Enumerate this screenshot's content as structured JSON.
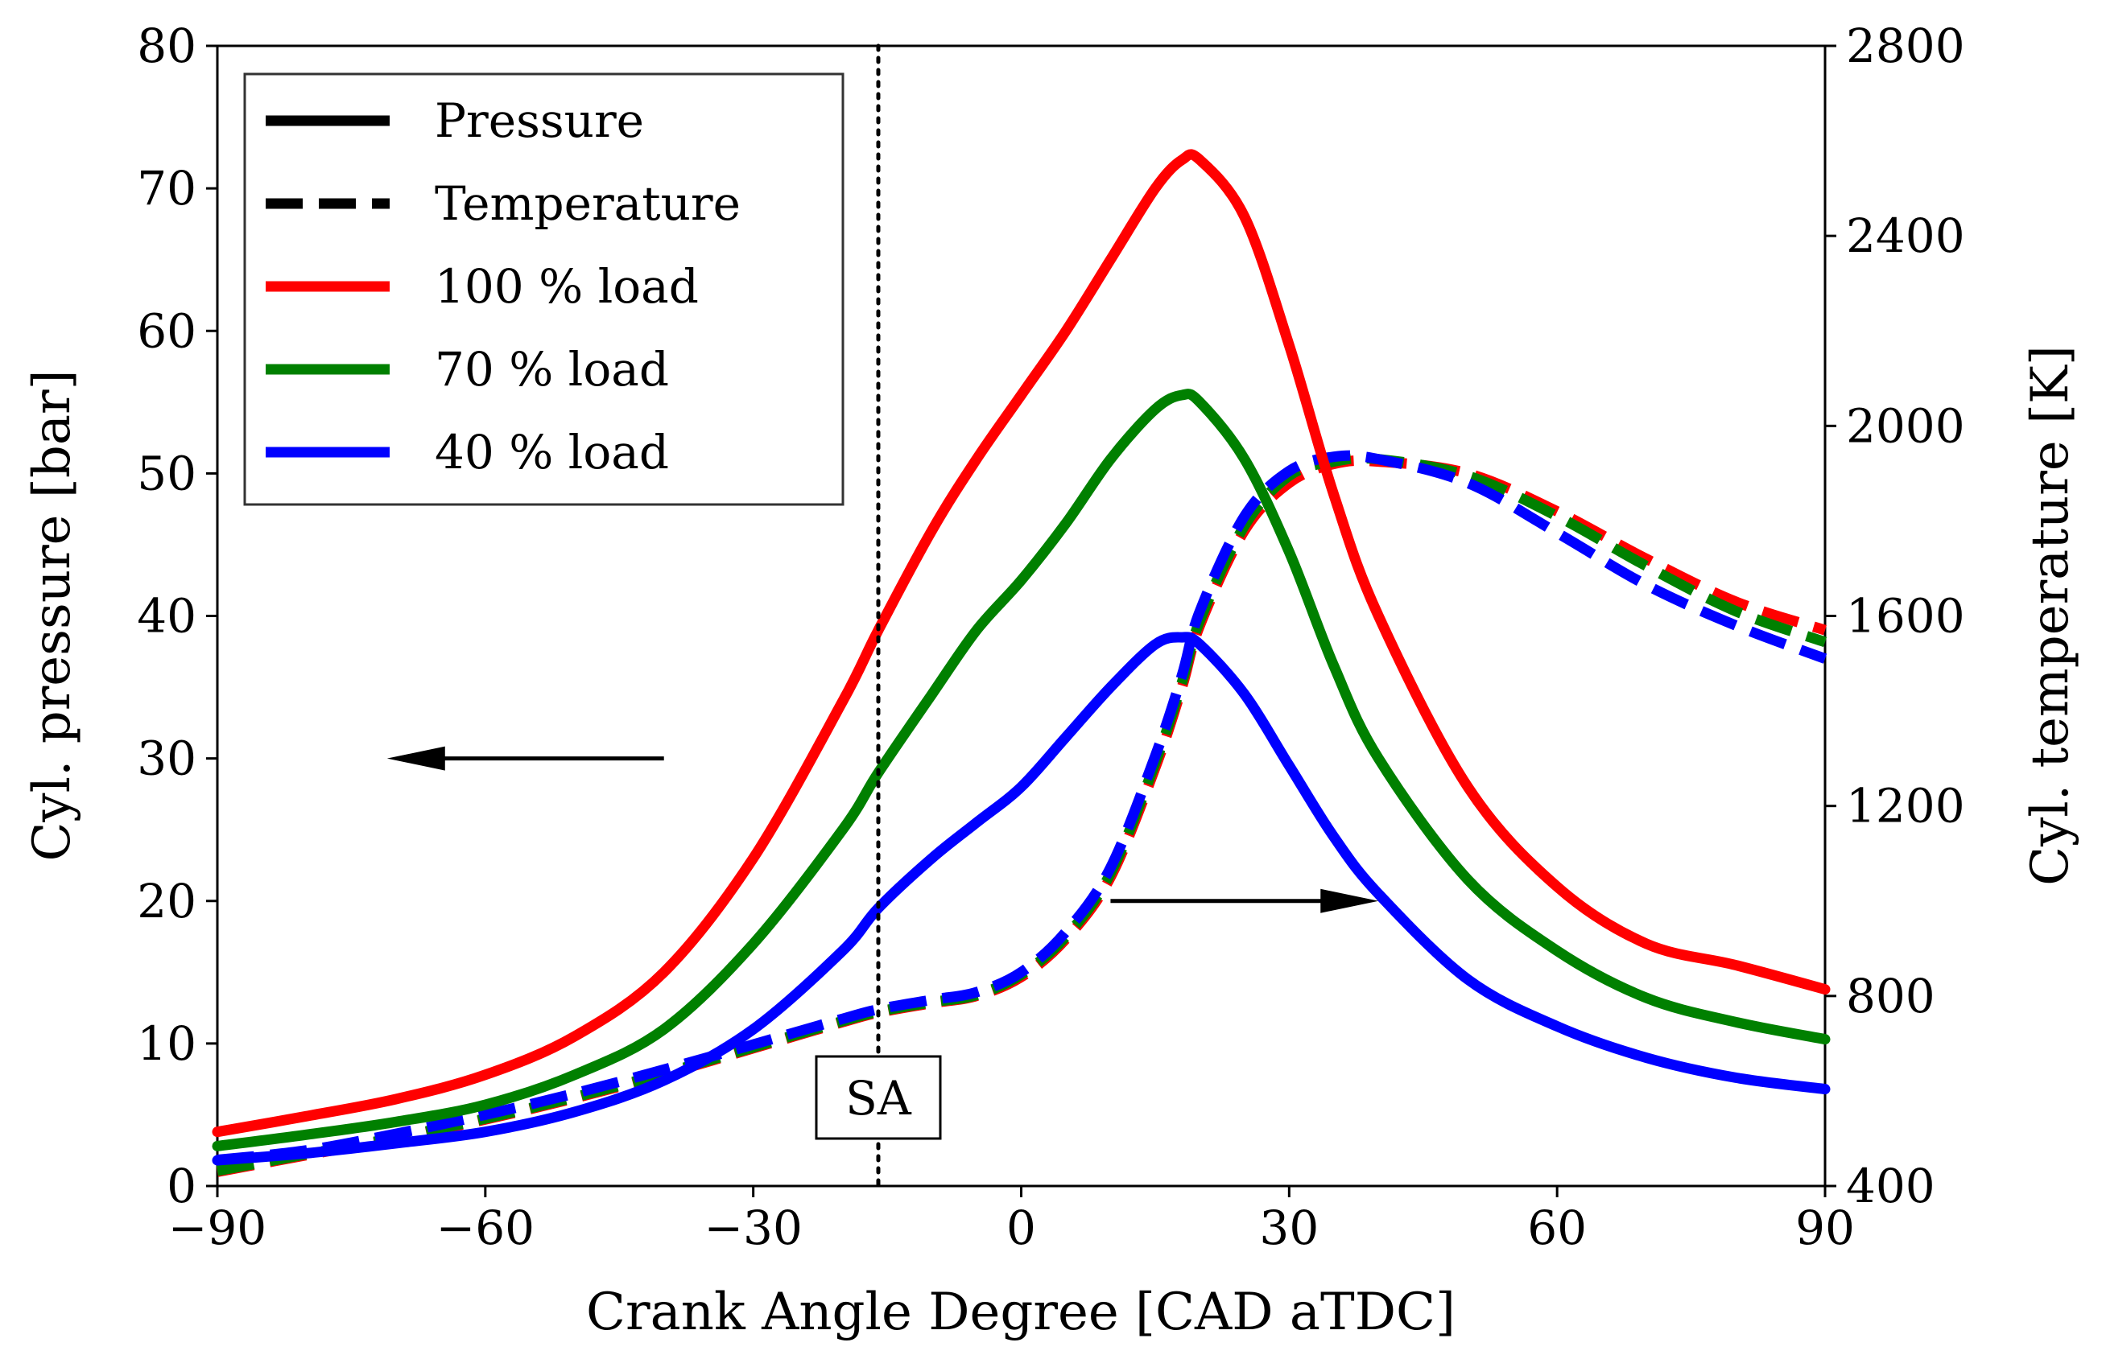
{
  "chart_data": {
    "type": "line",
    "xlabel": "Crank Angle Degree [CAD aTDC]",
    "ylabel_left": "Cyl. pressure [bar]",
    "ylabel_right": "Cyl. temperature [K]",
    "xlim": [
      -90,
      90
    ],
    "ylim_left": [
      0,
      80
    ],
    "ylim_right": [
      400,
      2800
    ],
    "x_ticks": [
      -90,
      -60,
      -30,
      0,
      30,
      60,
      90
    ],
    "x_tick_labels": [
      "−90",
      "−60",
      "−30",
      "0",
      "30",
      "60",
      "90"
    ],
    "y_left_ticks": [
      0,
      10,
      20,
      30,
      40,
      50,
      60,
      70,
      80
    ],
    "y_left_tick_labels": [
      "0",
      "10",
      "20",
      "30",
      "40",
      "50",
      "60",
      "70",
      "80"
    ],
    "y_right_ticks": [
      400,
      800,
      1200,
      1600,
      2000,
      2400,
      2800
    ],
    "y_right_tick_labels": [
      "400",
      "800",
      "1200",
      "1600",
      "2000",
      "2400",
      "2800"
    ],
    "grid": false,
    "legend_position": "top-left",
    "legend": [
      {
        "label": "Pressure",
        "color": "#000000",
        "style": "solid"
      },
      {
        "label": "Temperature",
        "color": "#000000",
        "style": "dashed"
      },
      {
        "label": "100 % load",
        "color": "#ff0000",
        "style": "solid"
      },
      {
        "label": "70 % load",
        "color": "#008000",
        "style": "solid"
      },
      {
        "label": "40 % load",
        "color": "#0000ff",
        "style": "solid"
      }
    ],
    "annotations": {
      "spark_advance_label": "SA",
      "spark_advance_x": -16,
      "left_arrow": {
        "x_from": -40,
        "x_to": -71,
        "y": 30,
        "axis": "left"
      },
      "right_arrow": {
        "x_from": 10,
        "x_to": 40,
        "y": 20,
        "axis": "left"
      }
    },
    "x": [
      -90,
      -80,
      -70,
      -60,
      -50,
      -40,
      -30,
      -20,
      -16,
      -10,
      -5,
      0,
      5,
      10,
      15,
      18,
      20,
      25,
      30,
      35,
      40,
      50,
      60,
      70,
      80,
      90
    ],
    "series": [
      {
        "name": "100 % load",
        "quantity": "pressure",
        "axis": "left",
        "color": "#ff0000",
        "values": [
          3.8,
          4.9,
          6.1,
          7.8,
          10.5,
          15.0,
          23.0,
          34.0,
          39.0,
          46.0,
          51.0,
          55.5,
          60.0,
          65.0,
          70.0,
          72.0,
          72.0,
          68.0,
          59.0,
          48.5,
          40.0,
          28.0,
          21.0,
          17.0,
          15.5,
          13.8
        ]
      },
      {
        "name": "70 % load",
        "quantity": "pressure",
        "axis": "left",
        "color": "#008000",
        "values": [
          2.8,
          3.6,
          4.5,
          5.7,
          7.8,
          11.0,
          17.0,
          25.0,
          29.0,
          34.5,
          39.0,
          42.5,
          46.5,
          51.0,
          54.5,
          55.5,
          55.0,
          51.0,
          44.5,
          36.5,
          30.0,
          21.5,
          16.5,
          13.2,
          11.5,
          10.3
        ]
      },
      {
        "name": "40 % load",
        "quantity": "pressure",
        "axis": "left",
        "color": "#0000ff",
        "values": [
          1.8,
          2.3,
          3.0,
          3.8,
          5.2,
          7.4,
          11.0,
          16.5,
          19.5,
          23.0,
          25.5,
          28.0,
          31.5,
          35.0,
          38.0,
          38.5,
          38.0,
          34.5,
          29.5,
          24.5,
          20.5,
          14.5,
          11.2,
          9.0,
          7.6,
          6.8
        ]
      },
      {
        "name": "100 % load",
        "quantity": "temperature",
        "axis": "right",
        "color": "#ff0000",
        "values": [
          430,
          465,
          500,
          540,
          585,
          635,
          690,
          745,
          765,
          785,
          800,
          840,
          920,
          1050,
          1280,
          1450,
          1580,
          1780,
          1880,
          1920,
          1925,
          1900,
          1820,
          1720,
          1630,
          1570
        ]
      },
      {
        "name": "70 % load",
        "quantity": "temperature",
        "axis": "right",
        "color": "#008000",
        "values": [
          432,
          467,
          502,
          542,
          587,
          637,
          692,
          747,
          767,
          787,
          802,
          845,
          925,
          1058,
          1290,
          1460,
          1590,
          1790,
          1895,
          1925,
          1930,
          1895,
          1810,
          1705,
          1610,
          1545
        ]
      },
      {
        "name": "40 % load",
        "quantity": "temperature",
        "axis": "right",
        "color": "#0000ff",
        "values": [
          455,
          475,
          510,
          550,
          595,
          645,
          698,
          752,
          772,
          792,
          808,
          850,
          935,
          1070,
          1305,
          1475,
          1610,
          1810,
          1905,
          1935,
          1930,
          1880,
          1775,
          1665,
          1580,
          1510
        ]
      }
    ]
  }
}
